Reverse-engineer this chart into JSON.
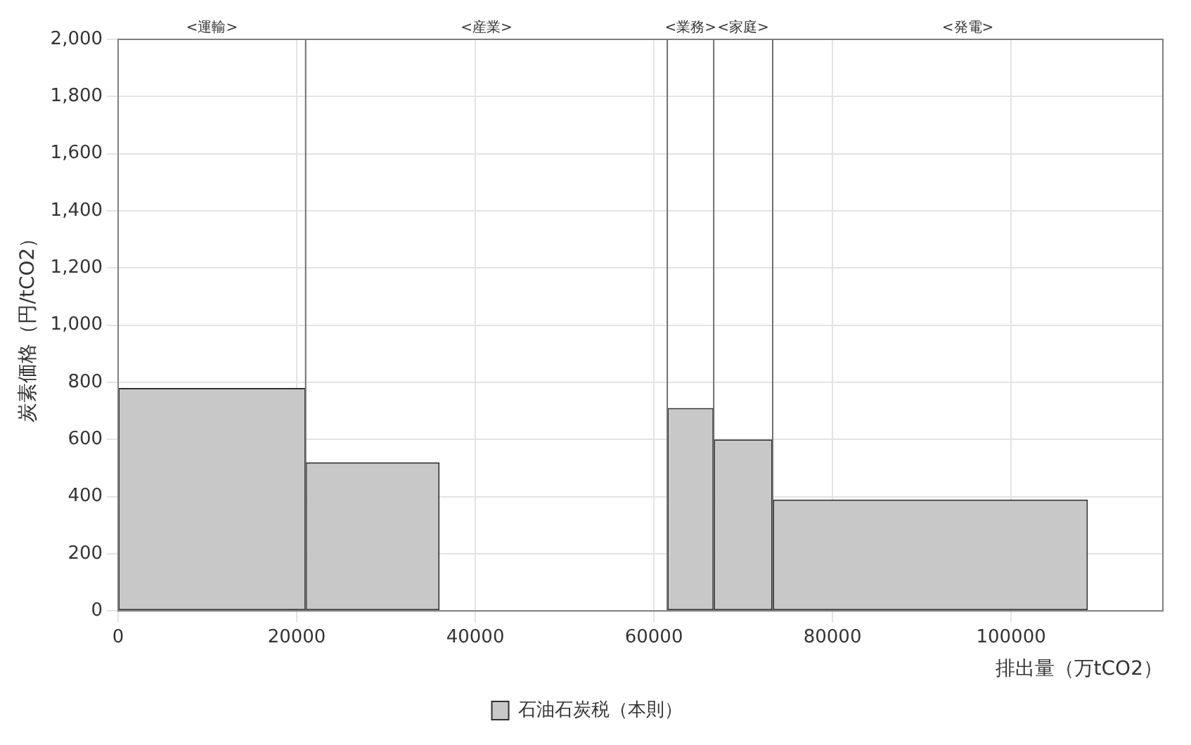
{
  "chart_data": {
    "type": "histogram",
    "xlabel": "排出量（万tCO2）",
    "ylabel": "炭素価格（円/tCO2）",
    "bins": [
      0,
      21000,
      36000,
      61500,
      66700,
      73300,
      108600
    ],
    "series": [
      {
        "name": "石油石炭税（本則）",
        "color": "#c8c8c8",
        "values": [
          780,
          520,
          0,
          710,
          600,
          390
        ]
      }
    ],
    "xlim": [
      0,
      117000
    ],
    "xticks": [
      0,
      20000,
      40000,
      60000,
      80000,
      100000
    ],
    "ylim": [
      0,
      2000
    ],
    "yticks": [
      0,
      200,
      400,
      600,
      800,
      {
        "value": 1000,
        "label": "1,000"
      },
      {
        "value": 1200,
        "label": "1,200"
      },
      {
        "value": 1400,
        "label": "1,400"
      },
      {
        "value": 1600,
        "label": "1,600"
      },
      {
        "value": 1800,
        "label": "1,800"
      },
      {
        "value": 2000,
        "label": "2,000"
      }
    ],
    "ref_lines": [
      {
        "axis": "x",
        "value": 21000,
        "color": "#707070"
      },
      {
        "axis": "x",
        "value": 61500,
        "color": "#707070"
      },
      {
        "axis": "x",
        "value": 66700,
        "color": "#707070"
      },
      {
        "axis": "x",
        "value": 73300,
        "color": "#707070"
      }
    ],
    "annotations": [
      "<運輸>",
      "<産業>",
      "<業務>",
      "<家庭>",
      "<発電>"
    ],
    "grid": true,
    "legend": "bottom"
  }
}
